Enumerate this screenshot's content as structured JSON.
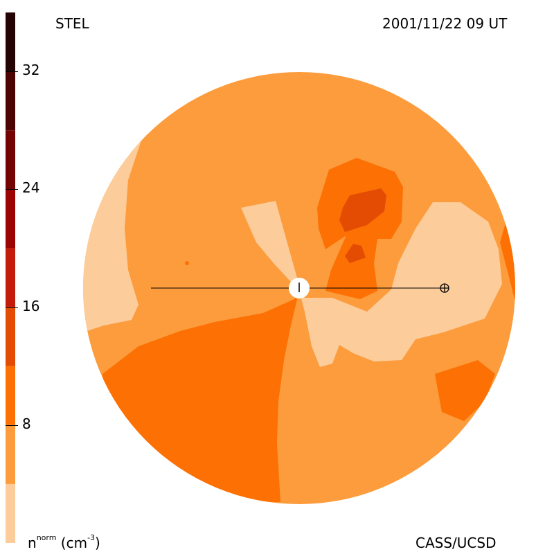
{
  "header": {
    "instrument": "STEL",
    "timestamp": "2001/11/22 09 UT"
  },
  "footer": {
    "quantity_base": "n",
    "quantity_sup": "norm",
    "quantity_unit": "(cm",
    "quantity_unit_sup": "-3",
    "quantity_unit_close": ")",
    "credit": "CASS/UCSD"
  },
  "colorbar": {
    "range": [
      0,
      36
    ],
    "tick_values": [
      8,
      16,
      24,
      32
    ],
    "tick_labels": [
      "8",
      "16",
      "24",
      "32"
    ],
    "levels": [
      {
        "from": 0,
        "to": 4,
        "color": "#fccc9a"
      },
      {
        "from": 4,
        "to": 8,
        "color": "#fc9c3c"
      },
      {
        "from": 8,
        "to": 12,
        "color": "#fc7004"
      },
      {
        "from": 12,
        "to": 16,
        "color": "#e44c04"
      },
      {
        "from": 16,
        "to": 20,
        "color": "#c41c0c"
      },
      {
        "from": 20,
        "to": 24,
        "color": "#9c0404"
      },
      {
        "from": 24,
        "to": 28,
        "color": "#740404"
      },
      {
        "from": 28,
        "to": 32,
        "color": "#4c0404"
      },
      {
        "from": 32,
        "to": 36,
        "color": "#240404"
      }
    ]
  },
  "map": {
    "background_color": "#fc9c3c",
    "sun_color": "#ffffff",
    "earth_symbol": "earth-icon",
    "line_color": "#000000"
  }
}
